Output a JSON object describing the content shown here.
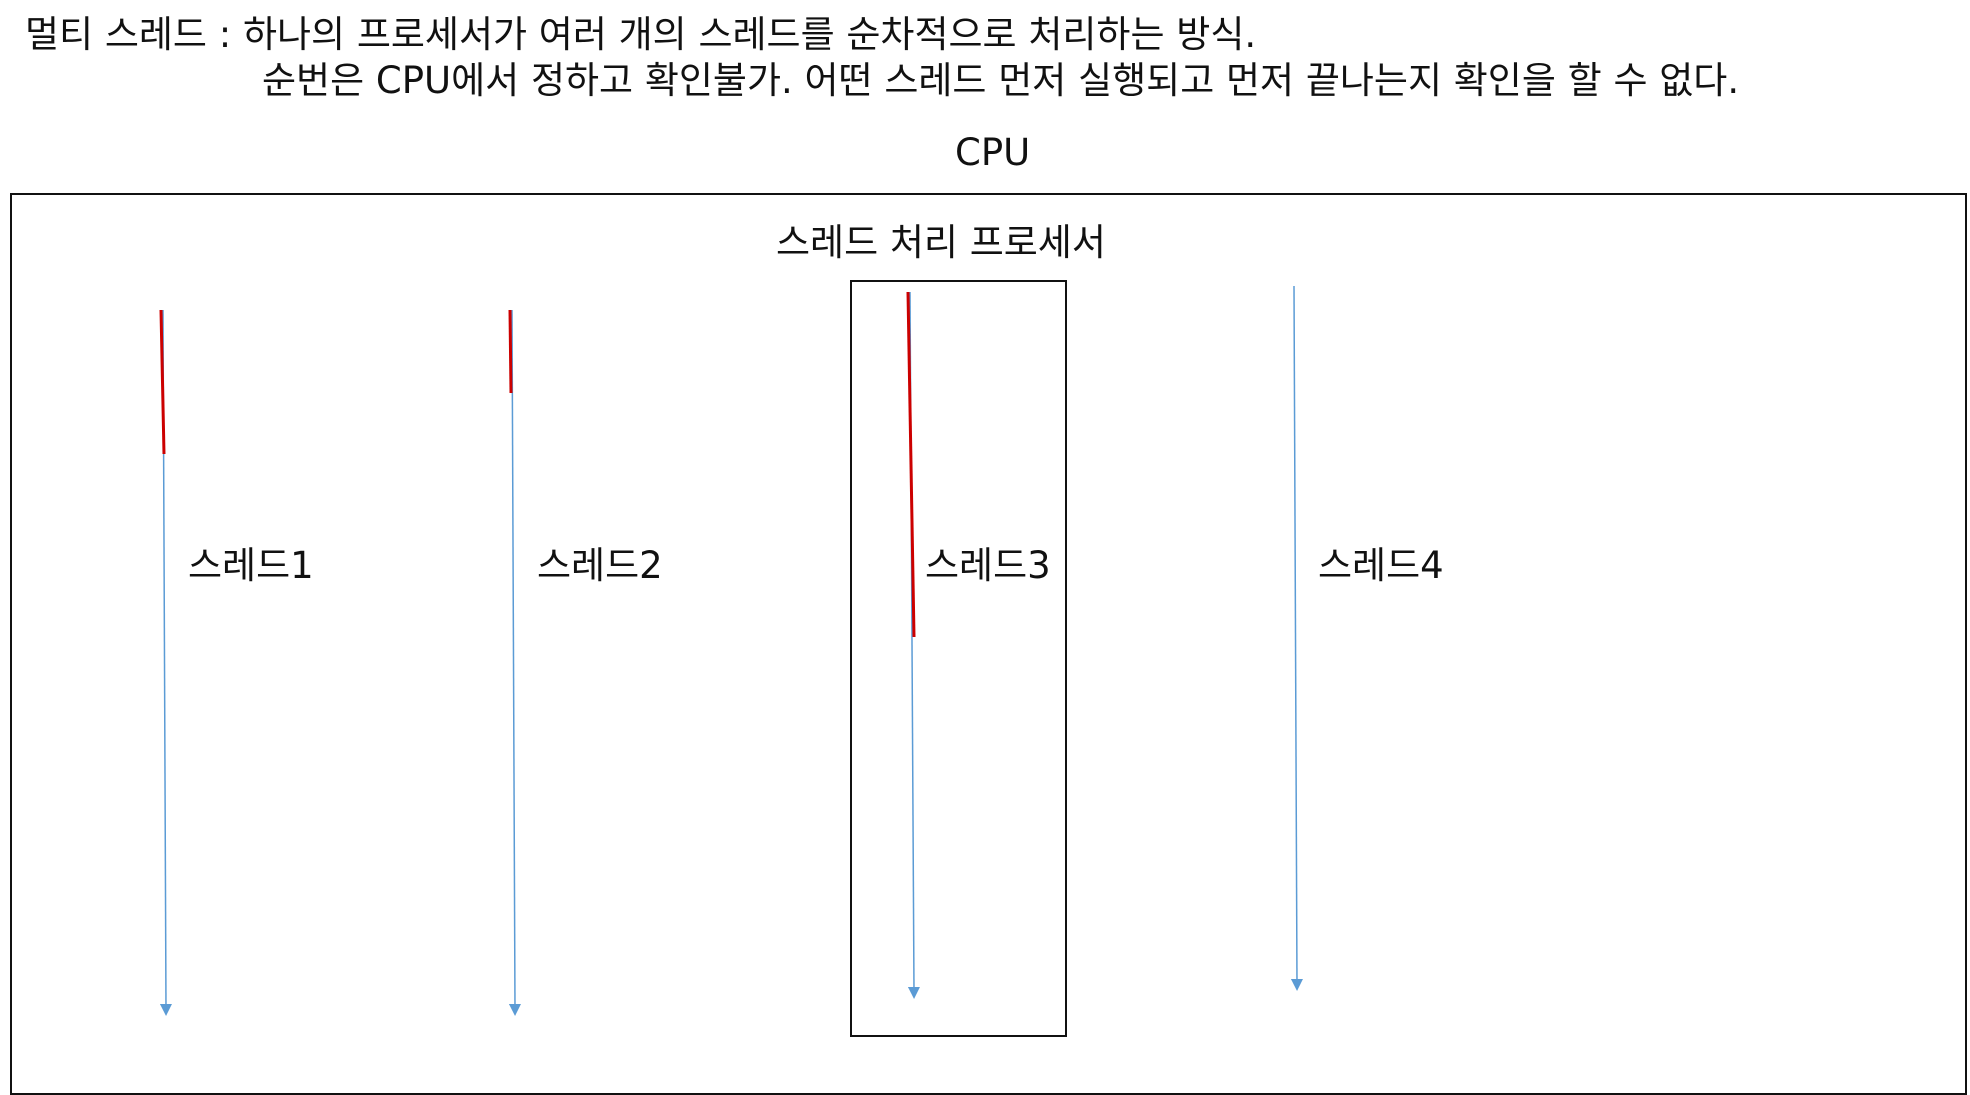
{
  "description": {
    "line1": "멀티 스레드 : 하나의 프로세서가 여러 개의 스레드를 순차적으로 처리하는 방식.",
    "line2": "순번은 CPU에서 정하고 확인불가. 어떤 스레드 먼저 실행되고 먼저 끝나는지 확인을 할 수 없다."
  },
  "cpu": {
    "label": "CPU"
  },
  "processor": {
    "label": "스레드 처리 프로세서"
  },
  "threads": [
    {
      "label": "스레드1",
      "executing": true
    },
    {
      "label": "스레드2",
      "executing": true
    },
    {
      "label": "스레드3",
      "executing": true,
      "selected": true
    },
    {
      "label": "스레드4",
      "executing": false
    }
  ],
  "colors": {
    "executing_segment": "#cc0000",
    "thread_arrow": "#5b9bd5",
    "border": "#111111"
  }
}
